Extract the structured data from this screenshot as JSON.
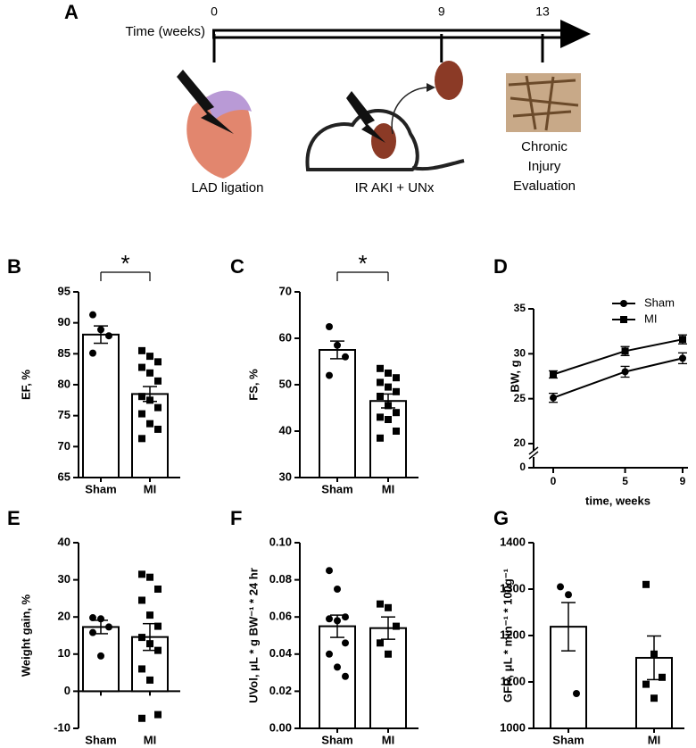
{
  "timeline": {
    "panel": "A",
    "label": "Time (weeks)",
    "xlim": [
      0,
      13
    ],
    "ticks": [
      0,
      9,
      13
    ],
    "events": [
      [
        "LAD ligation"
      ],
      [
        "IR AKI + UNx"
      ],
      [
        "Chronic",
        "Injury",
        "Evaluation"
      ]
    ]
  },
  "chart_data": [
    {
      "type": "bar",
      "panel": "B",
      "ylabel": "EF, %",
      "categories": [
        "Sham",
        "MI"
      ],
      "values": [
        88.1,
        78.5
      ],
      "errors": [
        1.4,
        1.2
      ],
      "points": [
        [
          91.3,
          88.9,
          87.9,
          85.1
        ],
        [
          85.5,
          84.6,
          83.7,
          82.8,
          81.9,
          80.6,
          78.1,
          77.5,
          76.3,
          75.3,
          73.7,
          72.8,
          71.3
        ]
      ],
      "markers": [
        "circle",
        "square"
      ],
      "color": "#000000",
      "significance": "*",
      "ylim": [
        65,
        95
      ],
      "yticks": [
        65,
        70,
        75,
        80,
        85,
        90,
        95
      ]
    },
    {
      "type": "bar",
      "panel": "C",
      "ylabel": "FS, %",
      "categories": [
        "Sham",
        "MI"
      ],
      "values": [
        57.5,
        46.5
      ],
      "errors": [
        1.9,
        1.5
      ],
      "points": [
        [
          62.5,
          58.5,
          56.0,
          52.0
        ],
        [
          53.5,
          52.5,
          51.5,
          50.5,
          49.5,
          48.5,
          47.5,
          45.5,
          44.0,
          43.0,
          42.5,
          40.0,
          38.5
        ]
      ],
      "markers": [
        "circle",
        "square"
      ],
      "color": "#000000",
      "significance": "*",
      "ylim": [
        30,
        70
      ],
      "yticks": [
        30,
        40,
        50,
        60,
        70
      ]
    },
    {
      "type": "line",
      "panel": "D",
      "ylabel": "BW, g",
      "xlabel": "time, weeks",
      "x": [
        0,
        5,
        9
      ],
      "xlim": [
        0,
        9
      ],
      "xticks": [
        0,
        5,
        9
      ],
      "ylim": [
        20,
        35
      ],
      "yticks": [
        0,
        20,
        25,
        30,
        35
      ],
      "axis_break": true,
      "legend": "upper right",
      "series": [
        {
          "name": "Sham",
          "marker": "circle",
          "color": "#000000",
          "values": [
            25.1,
            28.0,
            29.5
          ],
          "errors": [
            0.5,
            0.6,
            0.6
          ]
        },
        {
          "name": "MI",
          "marker": "square",
          "color": "#000000",
          "values": [
            27.7,
            30.3,
            31.6
          ],
          "errors": [
            0.4,
            0.5,
            0.5
          ]
        }
      ]
    },
    {
      "type": "bar",
      "panel": "E",
      "ylabel": "Weight gain, %",
      "categories": [
        "Sham",
        "MI"
      ],
      "values": [
        17.3,
        14.6
      ],
      "errors": [
        1.8,
        3.6
      ],
      "points": [
        [
          19.8,
          19.5,
          17.3,
          15.8,
          9.5
        ],
        [
          31.5,
          30.7,
          27.5,
          24.5,
          20.5,
          17.5,
          14.5,
          12.8,
          11.0,
          6.0,
          3.0,
          -6.3,
          -7.3
        ]
      ],
      "markers": [
        "circle",
        "square"
      ],
      "color": "#000000",
      "ylim": [
        -10,
        40
      ],
      "yticks": [
        -10,
        0,
        10,
        20,
        30,
        40
      ]
    },
    {
      "type": "bar",
      "panel": "F",
      "ylabel": "UVol, μL * g BW⁻¹ * 24 hr",
      "categories": [
        "Sham",
        "MI"
      ],
      "values": [
        0.055,
        0.054
      ],
      "errors": [
        0.006,
        0.006
      ],
      "points": [
        [
          0.085,
          0.075,
          0.06,
          0.059,
          0.058,
          0.046,
          0.04,
          0.033,
          0.028
        ],
        [
          0.067,
          0.065,
          0.055,
          0.046,
          0.04
        ]
      ],
      "markers": [
        "circle",
        "square"
      ],
      "color": "#000000",
      "ylim": [
        0,
        0.1
      ],
      "yticks": [
        {
          "value": 0,
          "label": "0.00"
        },
        {
          "value": 0.02,
          "label": "0.02"
        },
        {
          "value": 0.04,
          "label": "0.04"
        },
        {
          "value": 0.06,
          "label": "0.06"
        },
        {
          "value": 0.08,
          "label": "0.08"
        },
        {
          "value": 0.1,
          "label": "0.10"
        }
      ]
    },
    {
      "type": "bar",
      "panel": "G",
      "ylabel": "GFR, μL * min⁻¹ * 100g⁻¹",
      "categories": [
        "Sham",
        "MI"
      ],
      "values": [
        1219,
        1152
      ],
      "errors": [
        52,
        47
      ],
      "points": [
        [
          1305,
          1288,
          1075
        ],
        [
          1310,
          1160,
          1110,
          1095,
          1065
        ]
      ],
      "markers": [
        "circle",
        "square"
      ],
      "color": "#000000",
      "ylim": [
        1000,
        1400
      ],
      "yticks": [
        1000,
        1100,
        1200,
        1300,
        1400
      ]
    }
  ]
}
